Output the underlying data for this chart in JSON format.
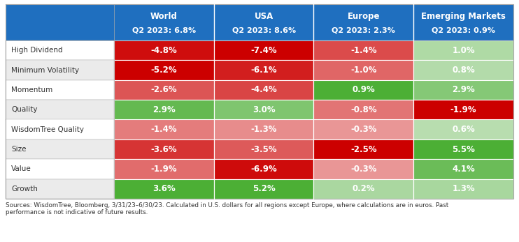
{
  "col_headers": [
    "World",
    "USA",
    "Europe",
    "Emerging Markets"
  ],
  "col_subheaders": [
    "Q2 2023: 6.8%",
    "Q2 2023: 8.6%",
    "Q2 2023: 2.3%",
    "Q2 2023: 0.9%"
  ],
  "row_labels": [
    "High Dividend",
    "Minimum Volatility",
    "Momentum",
    "Quality",
    "WisdomTree Quality",
    "Size",
    "Value",
    "Growth"
  ],
  "values": [
    [
      -4.8,
      -7.4,
      -1.4,
      1.0
    ],
    [
      -5.2,
      -6.1,
      -1.0,
      0.8
    ],
    [
      -2.6,
      -4.4,
      0.9,
      2.9
    ],
    [
      2.9,
      3.0,
      -0.8,
      -1.9
    ],
    [
      -1.4,
      -1.3,
      -0.3,
      0.6
    ],
    [
      -3.6,
      -3.5,
      -2.5,
      5.5
    ],
    [
      -1.9,
      -6.9,
      -0.3,
      4.1
    ],
    [
      3.6,
      5.2,
      0.2,
      1.3
    ]
  ],
  "header_bg": "#1F6FBF",
  "header_text": "#FFFFFF",
  "odd_row_bg": "#FFFFFF",
  "even_row_bg": "#EBEBEB",
  "footer_text": "Sources: WisdomTree, Bloomberg, 3/31/23–6/30/23. Calculated in U.S. dollars for all regions except Europe, where calculations are in euros. Past\nperformance is not indicative of future results.",
  "red_dark": "#CC0000",
  "red_light": "#EDAAAA",
  "green_dark": "#4CAF35",
  "green_light": "#C5E3BE",
  "cell_text_color": "#FFFFFF",
  "border_color": "#AAAAAA"
}
